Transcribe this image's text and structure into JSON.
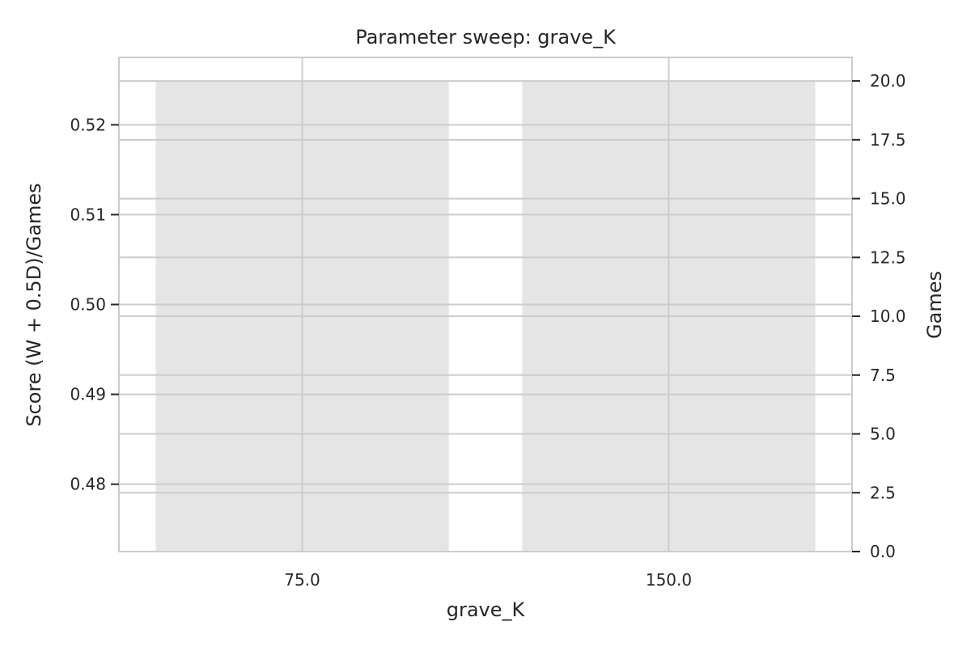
{
  "chart_data": {
    "type": "bar",
    "title": "Parameter sweep: grave_K",
    "xlabel": "grave_K",
    "ylabel_left": "Score (W + 0.5D)/Games",
    "ylabel_right": "Games",
    "categories": [
      "75.0",
      "150.0"
    ],
    "series": [
      {
        "name": "Games",
        "axis": "right",
        "values": [
          20,
          20
        ]
      }
    ],
    "y_left_ticks": [
      "0.48",
      "0.49",
      "0.50",
      "0.51",
      "0.52"
    ],
    "y_left_range": [
      0.4725,
      0.5275
    ],
    "y_right_ticks": [
      "0.0",
      "2.5",
      "5.0",
      "7.5",
      "10.0",
      "12.5",
      "15.0",
      "17.5",
      "20.0"
    ],
    "y_right_range": [
      0,
      21
    ],
    "grid": true,
    "colors": {
      "bar": "#e5e5e5",
      "grid": "#cccccc",
      "spine": "#cccccc",
      "left_label": "#1f77b4",
      "text": "#262626"
    }
  }
}
